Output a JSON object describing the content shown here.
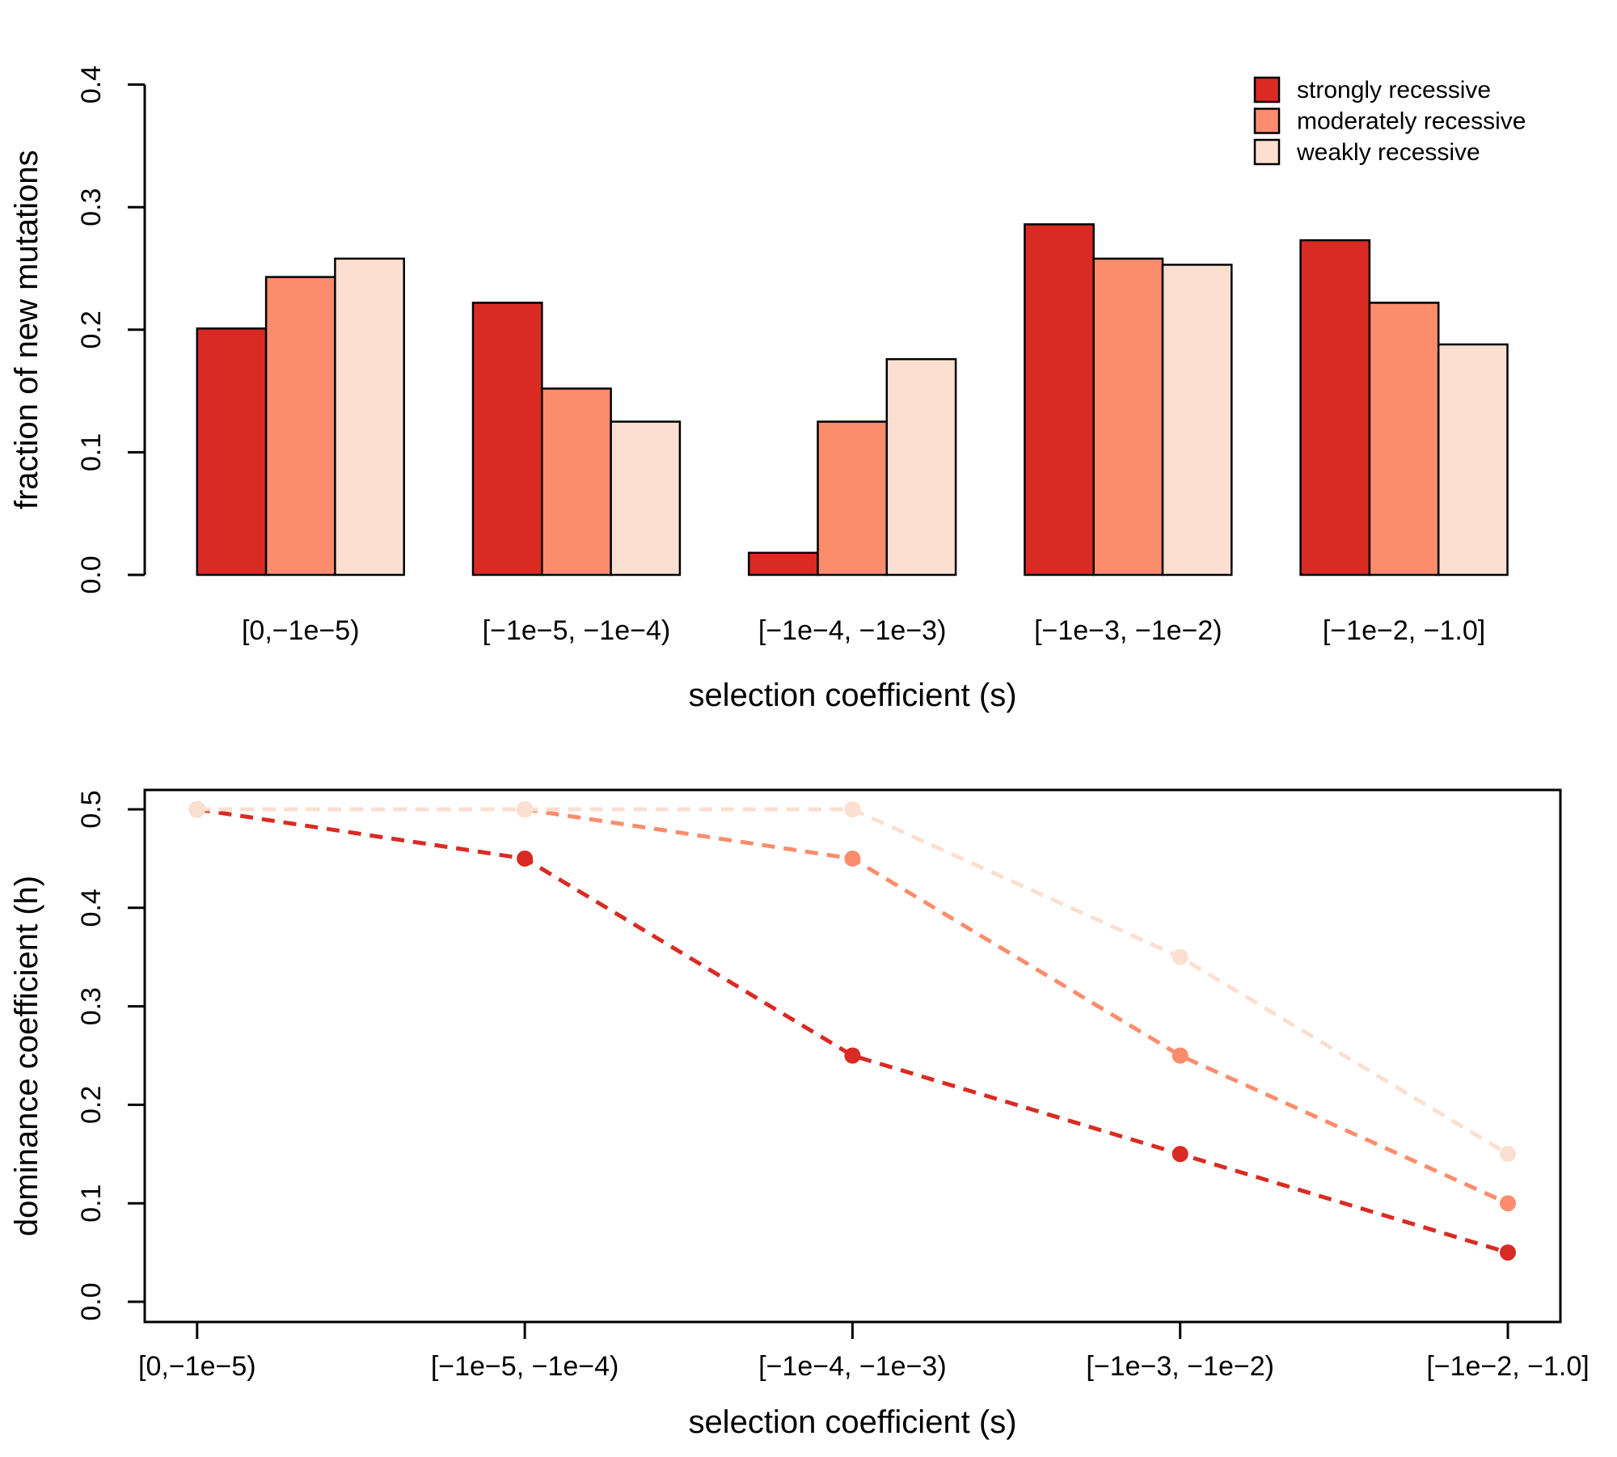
{
  "figure": {
    "background": "#ffffff",
    "axis_color": "#000000",
    "legend": {
      "position": "top-right",
      "items": [
        {
          "label": "strongly recessive",
          "color": "#d92b23"
        },
        {
          "label": "moderately recessive",
          "color": "#fb8d6d"
        },
        {
          "label": "weakly recessive",
          "color": "#fbdfd0"
        }
      ]
    }
  },
  "chart_data": [
    {
      "type": "bar",
      "title": "",
      "xlabel": "selection coefficient (s)",
      "ylabel": "fraction of new mutations",
      "categories": [
        "[0,−1e−5)",
        "[−1e−5, −1e−4)",
        "[−1e−4, −1e−3)",
        "[−1e−3, −1e−2)",
        "[−1e−2, −1.0]"
      ],
      "yticks": [
        "0.0",
        "0.1",
        "0.2",
        "0.3",
        "0.4"
      ],
      "ylim": [
        0,
        0.4
      ],
      "grid": false,
      "legend_position": "top-right",
      "series": [
        {
          "name": "strongly recessive",
          "color": "#d92b23",
          "values": [
            0.201,
            0.222,
            0.018,
            0.286,
            0.273
          ]
        },
        {
          "name": "moderately recessive",
          "color": "#fb8d6d",
          "values": [
            0.243,
            0.152,
            0.125,
            0.258,
            0.222
          ]
        },
        {
          "name": "weakly recessive",
          "color": "#fbdfd0",
          "values": [
            0.258,
            0.125,
            0.176,
            0.253,
            0.188
          ]
        }
      ]
    },
    {
      "type": "line",
      "title": "",
      "xlabel": "selection coefficient (s)",
      "ylabel": "dominance coefficient (h)",
      "categories": [
        "[0,−1e−5)",
        "[−1e−5, −1e−4)",
        "[−1e−4, −1e−3)",
        "[−1e−3, −1e−2)",
        "[−1e−2, −1.0]"
      ],
      "yticks": [
        "0.0",
        "0.1",
        "0.2",
        "0.3",
        "0.4",
        "0.5"
      ],
      "ylim": [
        0,
        0.5
      ],
      "grid": false,
      "line_style": "dashed",
      "marker": "circle",
      "series": [
        {
          "name": "strongly recessive",
          "color": "#d92b23",
          "values": [
            0.5,
            0.45,
            0.25,
            0.15,
            0.05
          ]
        },
        {
          "name": "moderately recessive",
          "color": "#fb8d6d",
          "values": [
            0.5,
            0.5,
            0.45,
            0.25,
            0.1
          ]
        },
        {
          "name": "weakly recessive",
          "color": "#fbdfd0",
          "values": [
            0.5,
            0.5,
            0.5,
            0.35,
            0.15
          ]
        }
      ]
    }
  ]
}
